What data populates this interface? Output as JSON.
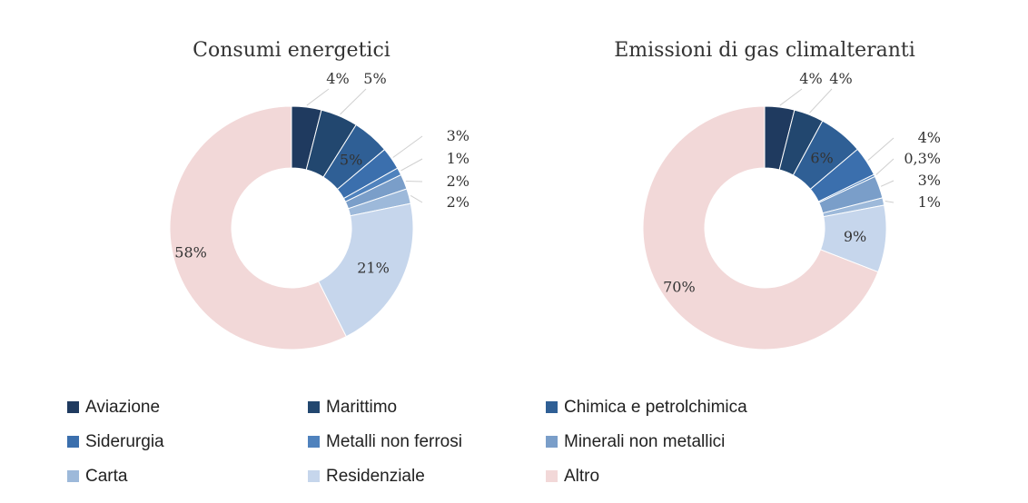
{
  "chart_data": [
    {
      "type": "pie",
      "title": "Consumi energetici",
      "categories": [
        "Aviazione",
        "Marittimo",
        "Chimica e petrolchimica",
        "Siderurgia",
        "Metalli non ferrosi",
        "Minerali non metallici",
        "Carta",
        "Residenziale",
        "Altro"
      ],
      "values": [
        4,
        5,
        5,
        3,
        1,
        2,
        2,
        21,
        58
      ],
      "labels": [
        "4%",
        "5%",
        "5%",
        "3%",
        "1%",
        "2%",
        "2%",
        "21%",
        "58%"
      ]
    },
    {
      "type": "pie",
      "title": "Emissioni di gas climalteranti",
      "categories": [
        "Aviazione",
        "Marittimo",
        "Chimica e petrolchimica",
        "Siderurgia",
        "Metalli non ferrosi",
        "Minerali non metallici",
        "Carta",
        "Residenziale",
        "Altro"
      ],
      "values": [
        4,
        4,
        6,
        4,
        0.3,
        3,
        1,
        9,
        70
      ],
      "labels": [
        "4%",
        "4%",
        "6%",
        "4%",
        "0,3%",
        "3%",
        "1%",
        "9%",
        "70%"
      ]
    }
  ],
  "legend": {
    "placement": "bottom",
    "items": [
      {
        "label": "Aviazione",
        "color": "#1f3a5f"
      },
      {
        "label": "Marittimo",
        "color": "#22476f"
      },
      {
        "label": "Chimica e petrolchimica",
        "color": "#2f5f95"
      },
      {
        "label": "Siderurgia",
        "color": "#3b6fad"
      },
      {
        "label": "Metalli non ferrosi",
        "color": "#4f82bd"
      },
      {
        "label": "Minerali non metallici",
        "color": "#7a9ec9"
      },
      {
        "label": "Carta",
        "color": "#9db9da"
      },
      {
        "label": "Residenziale",
        "color": "#c6d6ec"
      },
      {
        "label": "Altro",
        "color": "#f2d8d8"
      }
    ]
  }
}
